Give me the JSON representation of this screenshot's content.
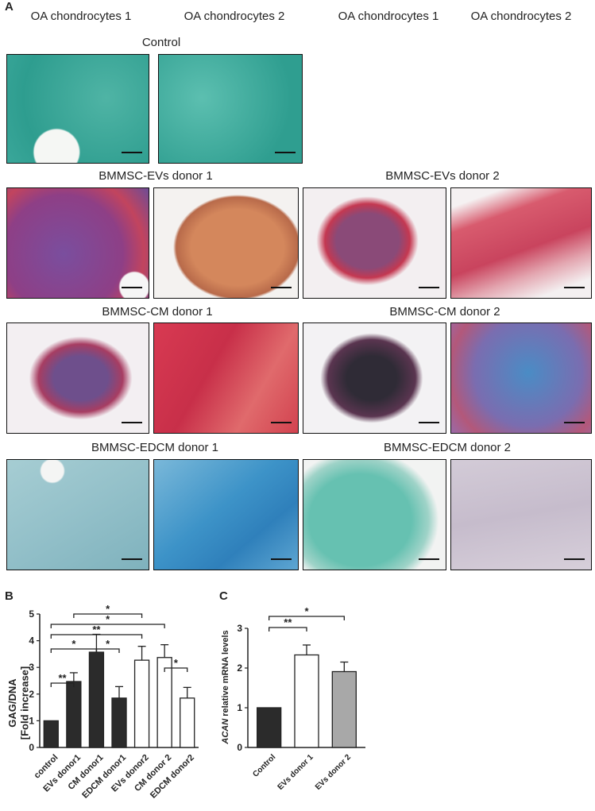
{
  "panel_labels": {
    "a": "A",
    "b": "B",
    "c": "C"
  },
  "column_headers": [
    "OA chondrocytes 1",
    "OA chondrocytes 2",
    "OA chondrocytes 1",
    "OA chondrocytes 2"
  ],
  "rows": {
    "control": "Control",
    "ev1": "BMMSC-EVs donor 1",
    "ev2": "BMMSC-EVs donor 2",
    "cm1": "BMMSC-CM donor 1",
    "cm2": "BMMSC-CM donor 2",
    "edcm1": "BMMSC-EDCM donor 1",
    "edcm2": "BMMSC-EDCM donor 2"
  },
  "stain_colors": {
    "teal": "#3aa79a",
    "purple": "#6a4f9a",
    "orange": "#d88a5c",
    "red": "#c23a52",
    "crimson": "#cc2f4a",
    "dark": "#3a2e45",
    "blue": "#3b8ec7",
    "pale": "#c9c3d2"
  },
  "chart_data": [
    {
      "type": "bar",
      "title": "",
      "ylabel": "GAG/DNA [Fold increase]",
      "ylim": [
        0,
        5
      ],
      "yticks": [
        "0",
        "1",
        "2",
        "3",
        "4",
        "5"
      ],
      "categories": [
        "control",
        "EVs  donor1",
        "CM donor1",
        "EDCM donor1",
        "EVs  donor2",
        "CM donor 2",
        "EDCM donor2"
      ],
      "values": [
        1.0,
        2.47,
        3.57,
        1.85,
        3.27,
        3.37,
        1.85
      ],
      "errors": [
        0,
        0.33,
        0.67,
        0.43,
        0.52,
        0.48,
        0.4
      ],
      "fills": [
        "#2b2b2b",
        "#2b2b2b",
        "#2b2b2b",
        "#2b2b2b",
        "#ffffff",
        "#ffffff",
        "#ffffff"
      ],
      "significance": [
        {
          "from": 0,
          "to": 1,
          "label": "**"
        },
        {
          "from": 0,
          "to": 2,
          "label": "*"
        },
        {
          "from": 2,
          "to": 3,
          "label": "*"
        },
        {
          "from": 0,
          "to": 4,
          "label": "**"
        },
        {
          "from": 0,
          "to": 5,
          "label": "*"
        },
        {
          "from": 1,
          "to": 4,
          "label": "*"
        },
        {
          "from": 5,
          "to": 6,
          "label": "*"
        }
      ]
    },
    {
      "type": "bar",
      "title": "",
      "ylabel_italic": "ACAN",
      "ylabel_rest": " relative mRNA levels",
      "ylim": [
        0,
        3
      ],
      "yticks": [
        "0",
        "1",
        "2",
        "3"
      ],
      "categories": [
        "Control",
        "EVs donor 1",
        "EVs donor 2"
      ],
      "values": [
        1.0,
        2.33,
        1.91
      ],
      "errors": [
        0,
        0.25,
        0.24
      ],
      "fills": [
        "#2b2b2b",
        "#ffffff",
        "#a8a8a8"
      ],
      "significance": [
        {
          "from": 0,
          "to": 1,
          "label": "**"
        },
        {
          "from": 0,
          "to": 2,
          "label": "*"
        }
      ]
    }
  ]
}
